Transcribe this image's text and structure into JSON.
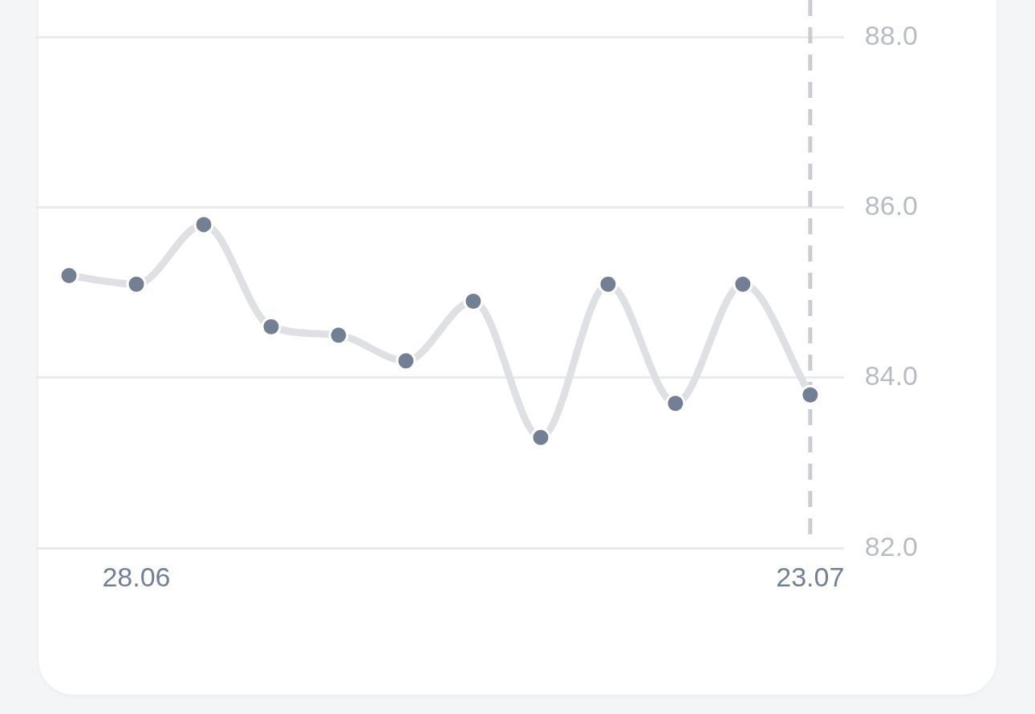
{
  "chart_data": {
    "type": "line",
    "categories": [
      null,
      "28.06",
      null,
      null,
      null,
      null,
      null,
      null,
      null,
      null,
      null,
      "23.07"
    ],
    "series": [
      {
        "color": "#737f93",
        "values": [
          85.2,
          85.1,
          85.8,
          84.6,
          84.5,
          84.2,
          84.9,
          83.3,
          85.1,
          83.7,
          85.1,
          83.8
        ]
      }
    ],
    "ylim": [
      82,
      88
    ],
    "yticks": [
      {
        "value": 82,
        "label": "82.0"
      },
      {
        "value": 84,
        "label": "84.0"
      },
      {
        "value": 86,
        "label": "86.0"
      },
      {
        "value": 88,
        "label": "88.0"
      }
    ],
    "grid": "y",
    "marker": "circle",
    "legend": false,
    "ref_lines": [
      {
        "axis": "x",
        "value": "23.07",
        "label": null,
        "line_style": "dashed",
        "color": "#c9ccd2"
      }
    ]
  }
}
